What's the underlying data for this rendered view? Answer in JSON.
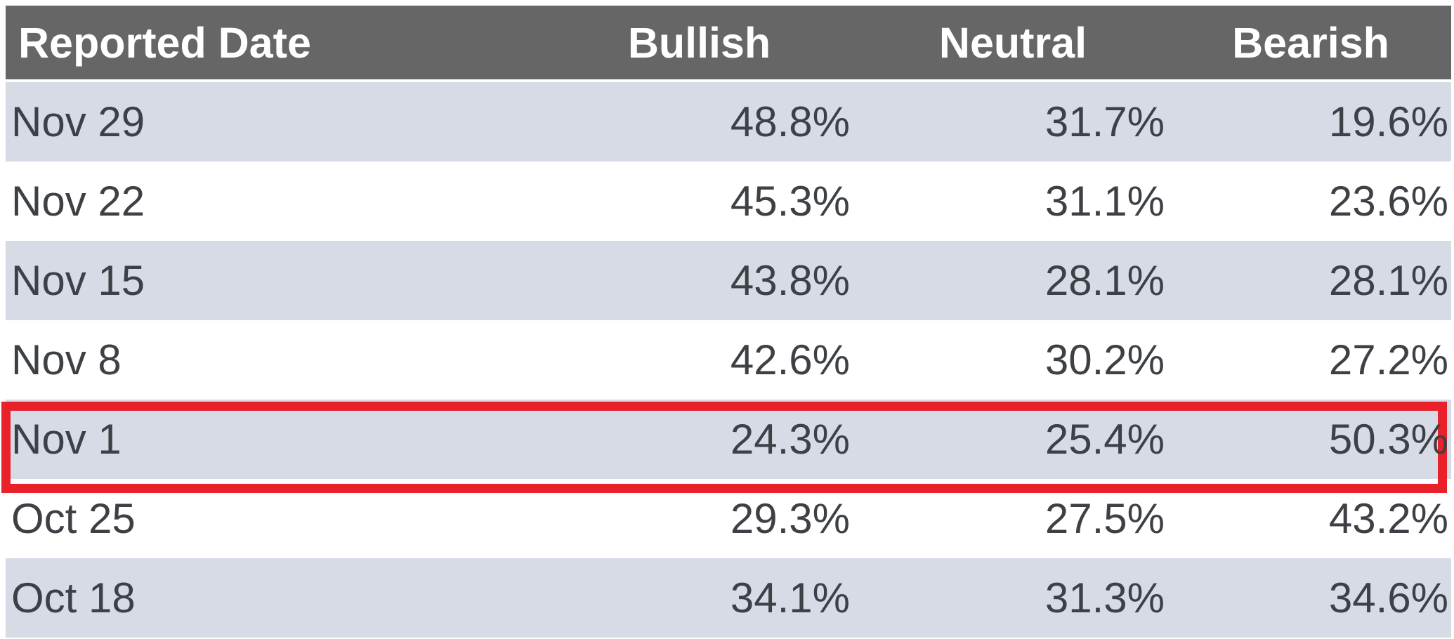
{
  "colors": {
    "header_bg": "#666666",
    "stripe_bg": "#d6dbe6",
    "row_bg": "#ffffff",
    "highlight_border": "#e8212b",
    "header_text": "#ffffff",
    "body_text": "#3d4045"
  },
  "table": {
    "columns": [
      "Reported Date",
      "Bullish",
      "Neutral",
      "Bearish"
    ],
    "rows": [
      {
        "date": "Nov 29",
        "bullish": "48.8%",
        "neutral": "31.7%",
        "bearish": "19.6%",
        "highlighted": false
      },
      {
        "date": "Nov 22",
        "bullish": "45.3%",
        "neutral": "31.1%",
        "bearish": "23.6%",
        "highlighted": false
      },
      {
        "date": "Nov 15",
        "bullish": "43.8%",
        "neutral": "28.1%",
        "bearish": "28.1%",
        "highlighted": false
      },
      {
        "date": "Nov 8",
        "bullish": "42.6%",
        "neutral": "30.2%",
        "bearish": "27.2%",
        "highlighted": false
      },
      {
        "date": "Nov 1",
        "bullish": "24.3%",
        "neutral": "25.4%",
        "bearish": "50.3%",
        "highlighted": true
      },
      {
        "date": "Oct 25",
        "bullish": "29.3%",
        "neutral": "27.5%",
        "bearish": "43.2%",
        "highlighted": false
      },
      {
        "date": "Oct 18",
        "bullish": "34.1%",
        "neutral": "31.3%",
        "bearish": "34.6%",
        "highlighted": false
      }
    ],
    "highlight": {
      "row": "Nov 1",
      "style": "red-outline"
    }
  },
  "chart_data": {
    "type": "table",
    "title": "",
    "columns": [
      "Reported Date",
      "Bullish",
      "Neutral",
      "Bearish"
    ],
    "categories": [
      "Nov 29",
      "Nov 22",
      "Nov 15",
      "Nov 8",
      "Nov 1",
      "Oct 25",
      "Oct 18"
    ],
    "series": [
      {
        "name": "Bullish",
        "values": [
          48.8,
          45.3,
          43.8,
          42.6,
          24.3,
          29.3,
          34.1
        ]
      },
      {
        "name": "Neutral",
        "values": [
          31.7,
          31.1,
          28.1,
          30.2,
          25.4,
          27.5,
          31.3
        ]
      },
      {
        "name": "Bearish",
        "values": [
          19.6,
          23.6,
          28.1,
          27.2,
          50.3,
          43.2,
          34.6
        ]
      }
    ],
    "unit": "%",
    "layout": {
      "row_striping": true,
      "header_style": "dark-gray"
    },
    "annotations": [
      "Nov 1 row outlined with thick red rectangle"
    ]
  }
}
